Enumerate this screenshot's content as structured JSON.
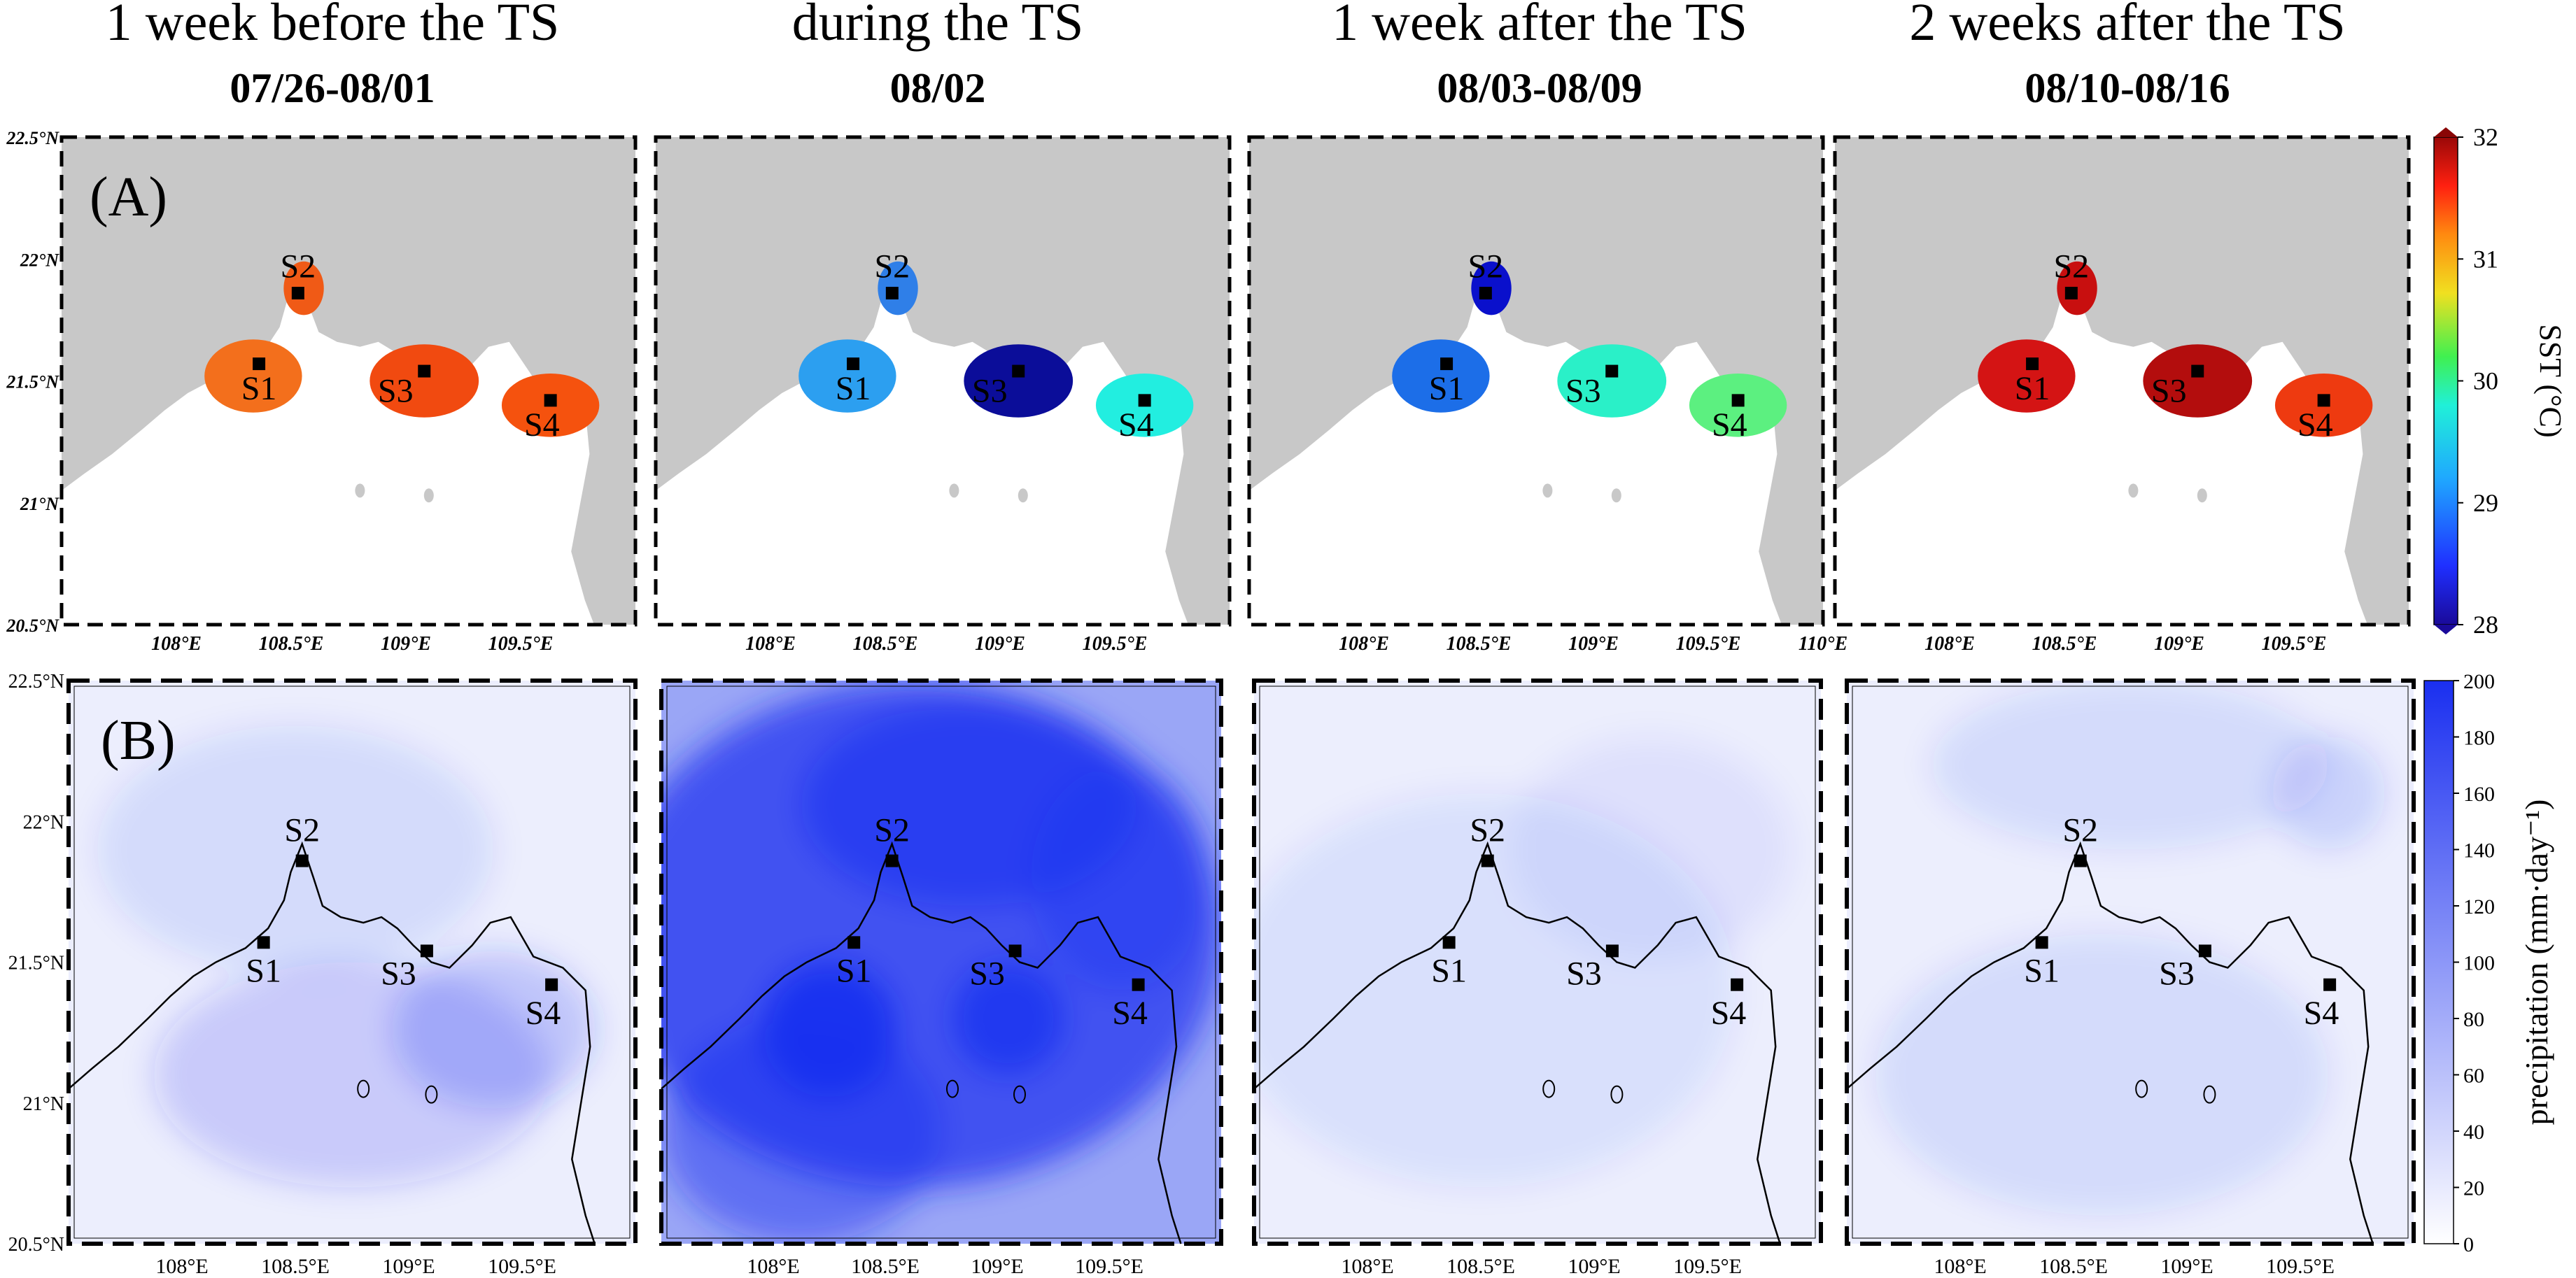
{
  "panels": [
    {
      "title": "1 week before the TS",
      "date": "07/26-08/01",
      "sst_colors": [
        "#f36f1c",
        "#f05a16",
        "#f14a10",
        "#f5520e"
      ],
      "rain": "before"
    },
    {
      "title": "during the TS",
      "date": "08/02",
      "sst_colors": [
        "#2c9ff0",
        "#2f7fe8",
        "#0b0d99",
        "#22eee0"
      ],
      "rain": "during"
    },
    {
      "title": "1 week after the TS",
      "date": "08/03-08/09",
      "sst_colors": [
        "#1c6ee8",
        "#0a10cc",
        "#2af0c8",
        "#5cf080"
      ],
      "rain": "after1"
    },
    {
      "title": "2 weeks after the TS",
      "date": "08/10-08/16",
      "sst_colors": [
        "#d41414",
        "#c80f0f",
        "#b30d0d",
        "#ee3a10"
      ],
      "rain": "after2"
    }
  ],
  "rows": [
    {
      "label": "(A)"
    },
    {
      "label": "(B)"
    }
  ],
  "stations": [
    "S1",
    "S2",
    "S3",
    "S4"
  ],
  "station_coords": {
    "S1": [
      108.36,
      21.57
    ],
    "S2": [
      108.53,
      21.86
    ],
    "S3": [
      109.08,
      21.54
    ],
    "S4": [
      109.63,
      21.42
    ]
  },
  "lon_ticks_a": [
    "108°E",
    "108.5°E",
    "109°E",
    "109.5°E"
  ],
  "lon_ticks_a_extra": "110°E",
  "lat_ticks_a": [
    "22.5°N",
    "22°N",
    "21.5°N",
    "21°N",
    "20.5°N"
  ],
  "lon_ticks_b": [
    "108°E",
    "108.5°E",
    "109°E",
    "109.5°E"
  ],
  "lat_ticks_b": [
    "22.5°N",
    "22°N",
    "21.5°N",
    "21°N",
    "20.5°N"
  ],
  "sst_colorbar": {
    "label": "SST (°C)",
    "ticks": [
      "32",
      "31",
      "30",
      "29",
      "28"
    ],
    "range": [
      28,
      32
    ]
  },
  "precip_colorbar": {
    "label": "precipitation (mm·day⁻¹)",
    "ticks": [
      "200",
      "180",
      "160",
      "140",
      "120",
      "100",
      "80",
      "60",
      "40",
      "20",
      "0"
    ],
    "range": [
      0,
      200
    ]
  },
  "colors": {
    "land": "#c8c8c8",
    "sea": "#ffffff",
    "precip_max": "#1a2ff0"
  }
}
